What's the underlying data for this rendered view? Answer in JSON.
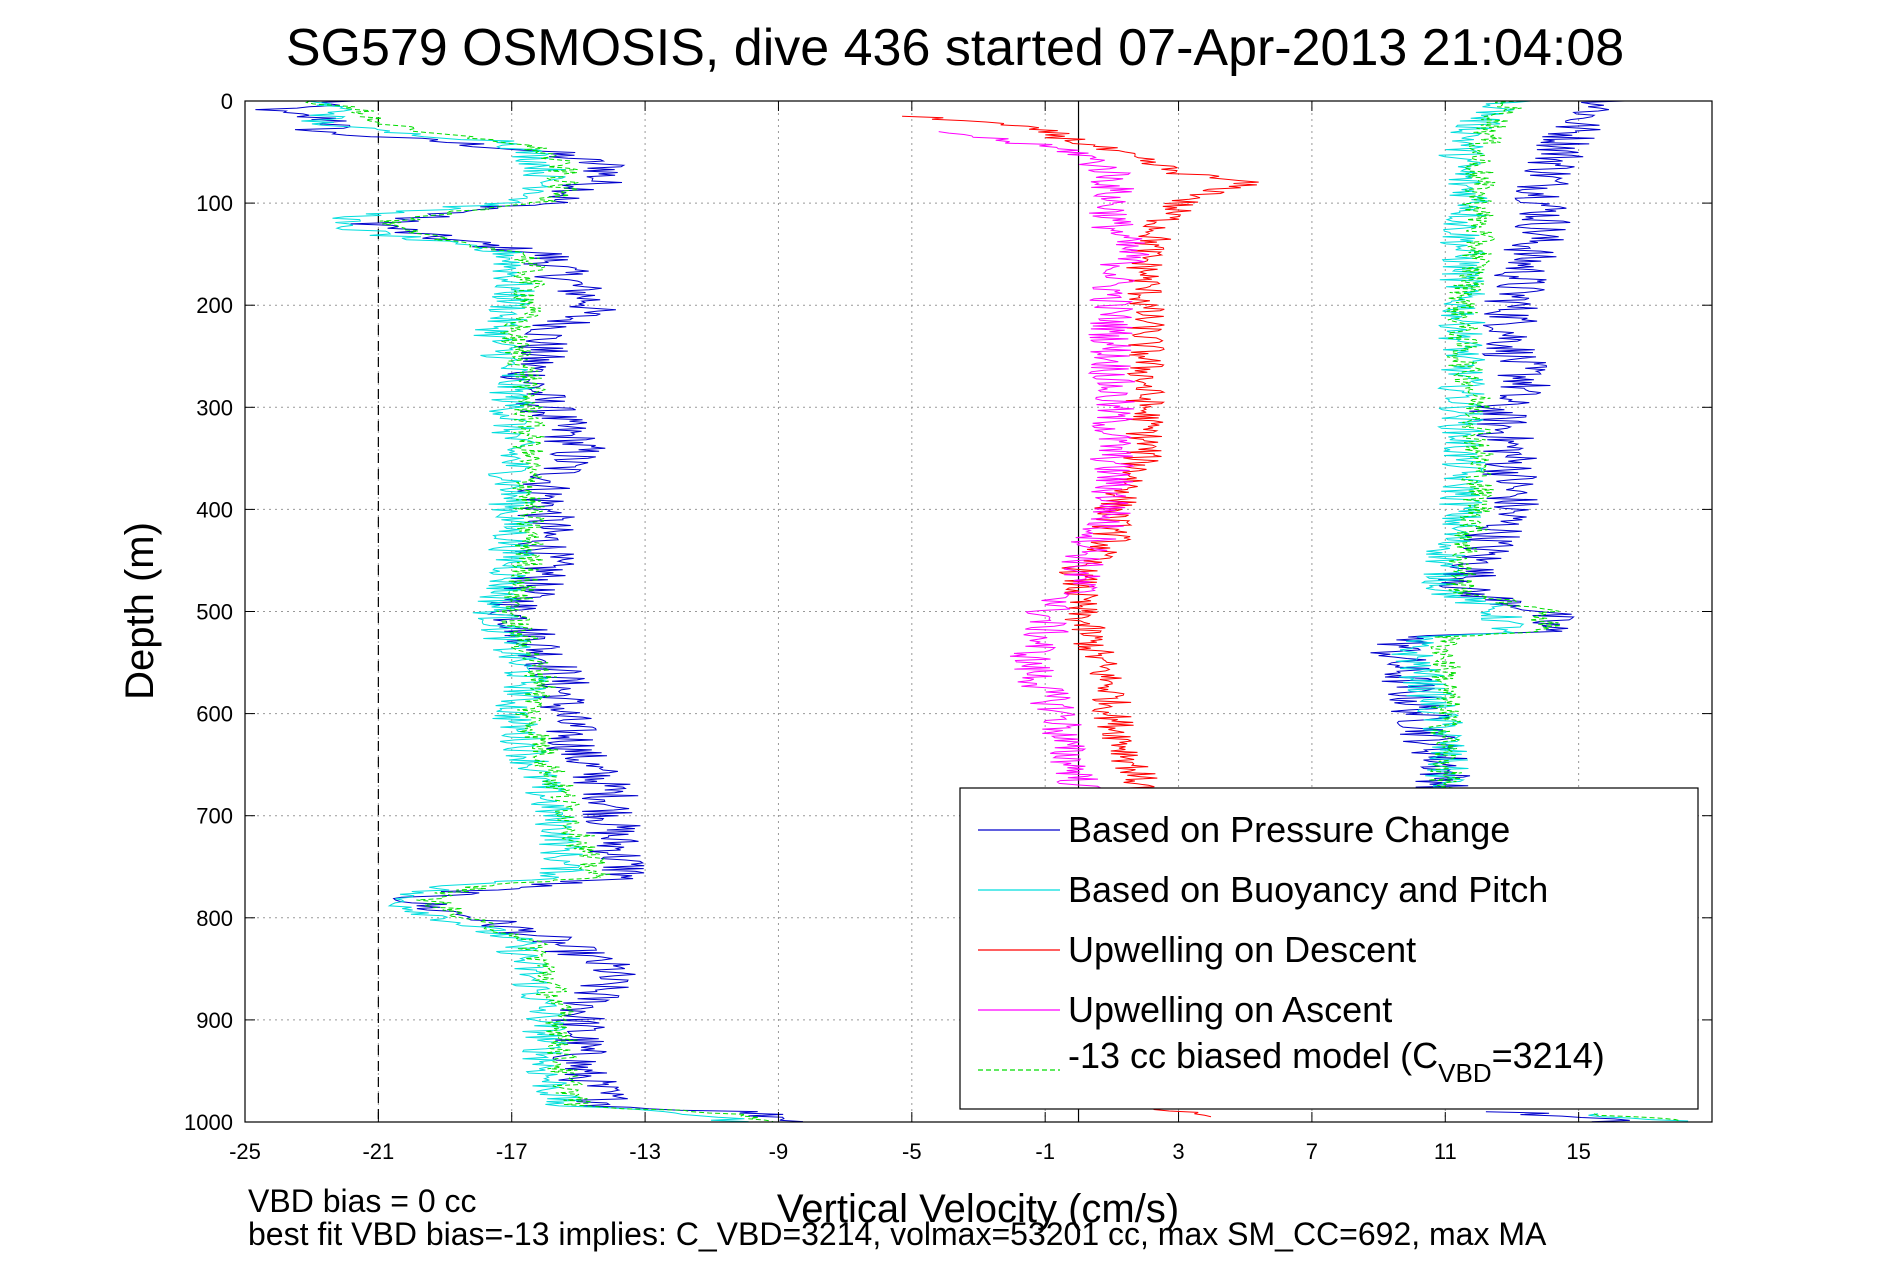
{
  "chart_data": {
    "type": "line",
    "title": "SG579 OSMOSIS, dive 436 started 07-Apr-2013 21:04:08",
    "xlabel": "Vertical Velocity (cm/s)",
    "ylabel": "Depth (m)",
    "xlim": [
      -25,
      19
    ],
    "ylim": [
      0,
      1000
    ],
    "y_reversed": true,
    "grid": true,
    "x_ticks": [
      "-25",
      "-21",
      "-17",
      "-13",
      "-9",
      "-5",
      "-1",
      "3",
      "7",
      "11",
      "15"
    ],
    "x_tick_values": [
      -25,
      -21,
      -17,
      -13,
      -9,
      -5,
      -1,
      3,
      7,
      11,
      15
    ],
    "y_ticks": [
      "0",
      "100",
      "200",
      "300",
      "400",
      "500",
      "600",
      "700",
      "800",
      "900",
      "1000"
    ],
    "y_tick_values": [
      0,
      100,
      200,
      300,
      400,
      500,
      600,
      700,
      800,
      900,
      1000
    ],
    "reference_lines": [
      {
        "x": -21,
        "style": "dashed",
        "color": "#000000"
      },
      {
        "x": 0,
        "style": "solid",
        "color": "#000000"
      }
    ],
    "legend": {
      "placement": "bottom-right"
    },
    "series": [
      {
        "name": "Based on Pressure Change",
        "color": "#0000cc",
        "dash": false,
        "noise": 0.9,
        "groups": [
          {
            "depth": [
              0,
              10,
              20,
              30,
              40,
              50,
              65,
              80,
              90,
              100,
              110,
              120,
              130,
              150,
              170,
              200,
              230,
              270,
              300,
              340,
              380,
              420,
              460,
              500,
              540,
              570,
              600,
              640,
              680,
              720,
              760,
              770,
              780,
              790,
              800,
              820,
              850,
              900,
              950,
              985,
              990,
              1000
            ],
            "vel": [
              -22,
              -24.5,
              -22,
              -23,
              -19,
              -16,
              -14,
              -14.5,
              -15,
              -16,
              -19,
              -21,
              -20,
              -16,
              -15.5,
              -14.5,
              -16,
              -16.5,
              -16,
              -15,
              -16,
              -16,
              -16,
              -17,
              -16,
              -15.5,
              -15.5,
              -15,
              -14,
              -14,
              -13.5,
              -17,
              -20,
              -19.5,
              -18,
              -16,
              -14,
              -15,
              -15,
              -14,
              -10,
              -8
            ]
          },
          {
            "depth": [
              0,
              20,
              50,
              80,
              100,
              120,
              150,
              200,
              250,
              275,
              300,
              350,
              400,
              450,
              480,
              500,
              520,
              525,
              540,
              580,
              620,
              650,
              680
            ],
            "vel": [
              16,
              15,
              14.5,
              14,
              14,
              14,
              13.5,
              13,
              13,
              13.5,
              12.5,
              13,
              13,
              12,
              11.5,
              14,
              14,
              10,
              9.5,
              10,
              10.5,
              11,
              11
            ]
          },
          {
            "depth": [
              990,
              994,
              997,
              1000
            ],
            "vel": [
              13,
              14,
              15.5,
              16
            ]
          }
        ]
      },
      {
        "name": "Based on Buoyancy and Pitch",
        "color": "#00dddd",
        "dash": false,
        "noise": 0.7,
        "groups": [
          {
            "depth": [
              0,
              10,
              20,
              30,
              40,
              50,
              65,
              80,
              90,
              100,
              110,
              120,
              130,
              150,
              170,
              200,
              230,
              270,
              300,
              340,
              380,
              420,
              460,
              500,
              540,
              570,
              600,
              640,
              680,
              720,
              760,
              770,
              780,
              790,
              800,
              820,
              850,
              900,
              950,
              985,
              990,
              1000
            ],
            "vel": [
              -23,
              -22,
              -23,
              -21,
              -17,
              -16.5,
              -16,
              -16,
              -16,
              -17,
              -21,
              -22.5,
              -21,
              -17,
              -17,
              -17,
              -17.5,
              -17,
              -17,
              -17,
              -17,
              -17,
              -17,
              -17.5,
              -17,
              -16.5,
              -17,
              -16.5,
              -16,
              -15.5,
              -15.5,
              -19,
              -20.5,
              -20,
              -19,
              -17,
              -16.5,
              -16,
              -16,
              -15.5,
              -12,
              -10
            ]
          },
          {
            "depth": [
              0,
              20,
              50,
              80,
              100,
              120,
              150,
              200,
              250,
              300,
              350,
              400,
              450,
              480,
              500,
              520,
              525,
              540,
              580,
              620,
              650,
              680
            ],
            "vel": [
              13,
              12,
              11.5,
              11.5,
              12,
              11.5,
              11.5,
              11.5,
              11.5,
              11.5,
              11.5,
              11.5,
              11,
              11,
              12.5,
              13,
              10,
              10,
              10.5,
              11,
              11,
              11
            ]
          },
          {
            "depth": [
              992,
              996,
              1000
            ],
            "vel": [
              15,
              16.5,
              18
            ]
          }
        ]
      },
      {
        "name": "Upwelling on Descent",
        "color": "#ff0000",
        "dash": false,
        "noise": 0.6,
        "groups": [
          {
            "depth": [
              15,
              20,
              30,
              45,
              60,
              70,
              80,
              100,
              120,
              150,
              180,
              200,
              230,
              260,
              300,
              340,
              380,
              400,
              430,
              460,
              480,
              500,
              540,
              580,
              600,
              640,
              680
            ],
            "vel": [
              -5,
              -3,
              -1,
              0.5,
              2,
              3,
              5,
              3,
              2.5,
              2,
              2,
              2,
              2,
              2,
              2,
              2,
              1.5,
              1,
              1,
              0,
              0,
              0,
              0.5,
              1,
              1,
              1.5,
              2
            ]
          },
          {
            "depth": [
              985,
              990,
              995
            ],
            "vel": [
              2,
              3,
              3.5
            ]
          }
        ]
      },
      {
        "name": "Upwelling on Ascent",
        "color": "#ff00ff",
        "dash": false,
        "noise": 0.7,
        "groups": [
          {
            "depth": [
              30,
              40,
              50,
              60,
              70,
              80,
              100,
              120,
              150,
              180,
              200,
              230,
              260,
              300,
              330,
              360,
              400,
              430,
              460,
              480,
              500,
              520,
              550,
              580,
              600,
              630,
              660,
              680
            ],
            "vel": [
              -4,
              -2,
              0,
              0.5,
              1,
              1,
              1,
              1,
              1.5,
              1,
              1,
              1,
              1,
              1,
              1,
              1,
              1,
              0.5,
              0,
              0,
              -1,
              -1,
              -1.5,
              -1,
              -0.5,
              -0.5,
              0,
              0
            ]
          }
        ]
      },
      {
        "name": "-13 cc biased model (C_VBD=3214)",
        "color": "#00dd00",
        "dash": true,
        "noise": 0.5,
        "groups": [
          {
            "depth": [
              0,
              10,
              20,
              30,
              40,
              50,
              65,
              80,
              90,
              100,
              110,
              120,
              130,
              150,
              170,
              200,
              230,
              270,
              300,
              340,
              380,
              420,
              460,
              500,
              540,
              570,
              600,
              640,
              680,
              720,
              760,
              770,
              780,
              790,
              800,
              820,
              850,
              900,
              950,
              985,
              990,
              1000
            ],
            "vel": [
              -23,
              -21.5,
              -21,
              -20,
              -17,
              -16,
              -15.5,
              -15.5,
              -15.5,
              -16,
              -19,
              -21,
              -20,
              -16.5,
              -16.5,
              -16.5,
              -17,
              -16.5,
              -16.5,
              -16.5,
              -16.5,
              -16.5,
              -16.5,
              -17,
              -16.5,
              -16,
              -16.5,
              -16,
              -15.5,
              -15,
              -14.5,
              -18,
              -19.5,
              -19,
              -18.5,
              -16.5,
              -16,
              -15.5,
              -15.5,
              -15,
              -11,
              -9
            ]
          },
          {
            "depth": [
              0,
              20,
              50,
              80,
              100,
              120,
              150,
              200,
              250,
              300,
              350,
              400,
              450,
              480,
              500,
              520,
              525,
              540,
              580,
              620,
              650,
              680
            ],
            "vel": [
              13,
              12.5,
              12,
              12,
              12,
              12,
              12,
              11.5,
              11.5,
              12,
              12,
              12,
              11.5,
              11.5,
              14,
              14,
              11,
              11,
              11,
              11,
              11,
              11
            ]
          },
          {
            "depth": [
              992,
              996,
              1000
            ],
            "vel": [
              15,
              17,
              19
            ]
          }
        ]
      }
    ],
    "annotations": [
      "VBD bias = 0 cc",
      "best fit VBD bias=-13 implies: C_VBD=3214, volmax=53201 cc, max SM_CC=692, max MA"
    ]
  },
  "legend_last": {
    "prefix": "-13 cc biased model (C",
    "sub": "VBD",
    "suffix": "=3214)"
  }
}
